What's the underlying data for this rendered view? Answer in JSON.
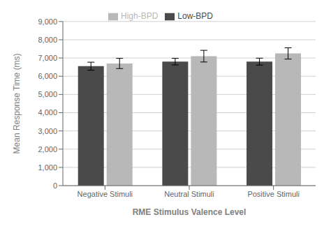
{
  "chart_data": {
    "type": "bar",
    "categories": [
      "Negative Stimuli",
      "Neutral Stimuli",
      "Positive Stimuli"
    ],
    "series": [
      {
        "name": "Low-BPD",
        "color": "#4a4a4a",
        "values": [
          6550,
          6800,
          6800
        ],
        "errors": [
          220,
          180,
          190
        ]
      },
      {
        "name": "High-BPD",
        "color": "#b8b8b8",
        "values": [
          6700,
          7100,
          7250
        ],
        "errors": [
          280,
          320,
          310
        ]
      }
    ],
    "xlabel": "RME Stimulus Valence Level",
    "ylabel": "Mean Response Time (ms)",
    "ylim": [
      0,
      9000
    ],
    "yticks": [
      0,
      {
        "value": 1000,
        "label": "1,000"
      },
      {
        "value": 2000,
        "label": "2,000"
      },
      {
        "value": 3000,
        "label": "3,000"
      },
      {
        "value": 4000,
        "label": "4,000"
      },
      {
        "value": 5000,
        "label": "5,000"
      },
      {
        "value": 6000,
        "label": "6,000"
      },
      {
        "value": 7000,
        "label": "7,000"
      },
      {
        "value": 8000,
        "label": "8,000"
      },
      {
        "value": 9000,
        "label": "9,000"
      }
    ],
    "grid": true,
    "legend": "top"
  }
}
